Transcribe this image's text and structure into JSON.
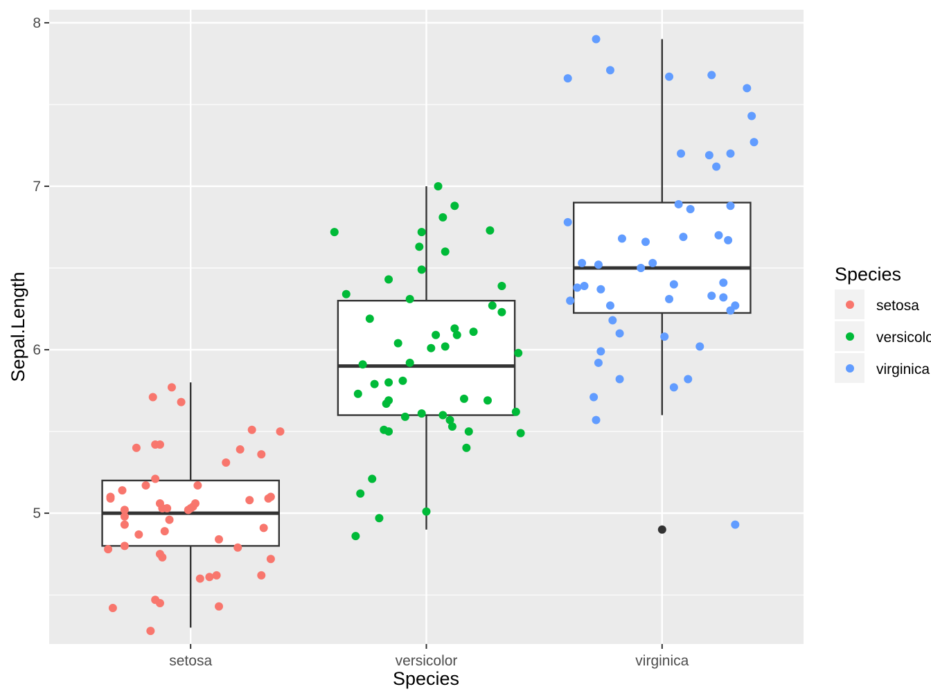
{
  "chart_data": {
    "type": "boxplot",
    "xlabel": "Species",
    "ylabel": "Sepal.Length",
    "categories": [
      "setosa",
      "versicolor",
      "virginica"
    ],
    "ylim": [
      4.2,
      8.08
    ],
    "yticks": [
      5,
      6,
      7,
      8
    ],
    "grid": true,
    "legend": {
      "title": "Species",
      "placement": "right",
      "entries": [
        "setosa",
        "versicolor",
        "virginica"
      ]
    },
    "colors": {
      "setosa": "#F8766D",
      "versicolor": "#00BA38",
      "virginica": "#619CFF",
      "panel": "#EBEBEB",
      "box_line": "#333333"
    },
    "boxes": [
      {
        "name": "setosa",
        "lower_whisker": 4.3,
        "q1": 4.8,
        "median": 5.0,
        "q3": 5.2,
        "upper_whisker": 5.8,
        "outliers": []
      },
      {
        "name": "versicolor",
        "lower_whisker": 4.9,
        "q1": 5.6,
        "median": 5.9,
        "q3": 6.3,
        "upper_whisker": 7.0,
        "outliers": []
      },
      {
        "name": "virginica",
        "lower_whisker": 5.6,
        "q1": 6.225,
        "median": 6.5,
        "q3": 6.9,
        "upper_whisker": 7.9,
        "outliers": [
          4.9
        ]
      }
    ],
    "series": [
      {
        "name": "setosa",
        "points": [
          [
            0.66,
            5.1
          ],
          [
            0.66,
            5.09
          ],
          [
            0.72,
            4.8
          ],
          [
            0.65,
            4.78
          ],
          [
            0.67,
            4.42
          ],
          [
            0.72,
            5.02
          ],
          [
            0.71,
            5.14
          ],
          [
            0.72,
            4.93
          ],
          [
            0.72,
            4.98
          ],
          [
            0.78,
            4.87
          ],
          [
            0.81,
            5.17
          ],
          [
            0.85,
            4.47
          ],
          [
            0.83,
            4.28
          ],
          [
            0.85,
            5.21
          ],
          [
            0.87,
            4.75
          ],
          [
            0.87,
            4.45
          ],
          [
            0.87,
            5.06
          ],
          [
            0.87,
            5.42
          ],
          [
            0.85,
            5.42
          ],
          [
            0.77,
            5.4
          ],
          [
            0.84,
            5.71
          ],
          [
            0.88,
            4.73
          ],
          [
            0.88,
            5.03
          ],
          [
            0.89,
            4.89
          ],
          [
            0.91,
            4.96
          ],
          [
            0.9,
            5.03
          ],
          [
            0.92,
            5.77
          ],
          [
            0.96,
            5.68
          ],
          [
            0.99,
            5.02
          ],
          [
            1.01,
            5.04
          ],
          [
            1.03,
            5.17
          ],
          [
            1.02,
            5.06
          ],
          [
            1.04,
            4.6
          ],
          [
            1.08,
            4.61
          ],
          [
            1.0,
            5.03
          ],
          [
            1.11,
            4.62
          ],
          [
            1.12,
            4.43
          ],
          [
            1.12,
            4.84
          ],
          [
            1.15,
            5.31
          ],
          [
            1.2,
            4.79
          ],
          [
            1.21,
            5.39
          ],
          [
            1.26,
            5.51
          ],
          [
            1.25,
            5.08
          ],
          [
            1.3,
            5.36
          ],
          [
            1.3,
            4.62
          ],
          [
            1.31,
            4.91
          ],
          [
            1.33,
            5.09
          ],
          [
            1.34,
            5.1
          ],
          [
            1.34,
            4.72
          ],
          [
            1.38,
            5.5
          ]
        ]
      },
      {
        "name": "versicolor",
        "points": [
          [
            1.61,
            6.72
          ],
          [
            1.66,
            6.34
          ],
          [
            1.7,
            4.86
          ],
          [
            1.72,
            5.12
          ],
          [
            1.71,
            5.73
          ],
          [
            1.73,
            5.91
          ],
          [
            1.76,
            6.19
          ],
          [
            1.78,
            5.79
          ],
          [
            1.77,
            5.21
          ],
          [
            1.8,
            4.97
          ],
          [
            1.82,
            5.51
          ],
          [
            1.83,
            5.67
          ],
          [
            1.84,
            5.69
          ],
          [
            1.84,
            5.5
          ],
          [
            1.84,
            6.43
          ],
          [
            1.84,
            5.8
          ],
          [
            1.88,
            6.04
          ],
          [
            1.9,
            5.81
          ],
          [
            1.91,
            5.59
          ],
          [
            1.93,
            5.92
          ],
          [
            1.93,
            6.31
          ],
          [
            1.97,
            6.63
          ],
          [
            1.98,
            6.72
          ],
          [
            1.98,
            6.49
          ],
          [
            1.98,
            5.61
          ],
          [
            2.0,
            5.01
          ],
          [
            2.02,
            6.01
          ],
          [
            2.04,
            6.09
          ],
          [
            2.05,
            7.0
          ],
          [
            2.07,
            6.81
          ],
          [
            2.08,
            6.6
          ],
          [
            2.08,
            6.02
          ],
          [
            2.07,
            5.6
          ],
          [
            2.1,
            5.57
          ],
          [
            2.11,
            5.53
          ],
          [
            2.12,
            6.88
          ],
          [
            2.12,
            6.13
          ],
          [
            2.13,
            6.09
          ],
          [
            2.16,
            5.7
          ],
          [
            2.17,
            5.4
          ],
          [
            2.18,
            5.5
          ],
          [
            2.2,
            6.11
          ],
          [
            2.26,
            5.69
          ],
          [
            2.27,
            6.73
          ],
          [
            2.28,
            6.27
          ],
          [
            2.32,
            6.39
          ],
          [
            2.32,
            6.23
          ],
          [
            2.38,
            5.62
          ],
          [
            2.39,
            5.98
          ],
          [
            2.4,
            5.49
          ]
        ]
      },
      {
        "name": "virginica",
        "points": [
          [
            2.6,
            7.66
          ],
          [
            2.6,
            6.78
          ],
          [
            2.61,
            6.3
          ],
          [
            2.64,
            6.38
          ],
          [
            2.66,
            6.53
          ],
          [
            2.67,
            6.39
          ],
          [
            2.71,
            5.71
          ],
          [
            2.72,
            5.57
          ],
          [
            2.72,
            7.9
          ],
          [
            2.73,
            6.52
          ],
          [
            2.73,
            5.92
          ],
          [
            2.74,
            6.37
          ],
          [
            2.74,
            5.99
          ],
          [
            2.78,
            7.71
          ],
          [
            2.78,
            6.27
          ],
          [
            2.79,
            6.18
          ],
          [
            2.82,
            5.82
          ],
          [
            2.83,
            6.68
          ],
          [
            2.82,
            6.1
          ],
          [
            2.91,
            6.5
          ],
          [
            2.93,
            6.66
          ],
          [
            2.96,
            6.53
          ],
          [
            3.01,
            6.08
          ],
          [
            3.03,
            7.67
          ],
          [
            3.03,
            6.31
          ],
          [
            3.05,
            5.77
          ],
          [
            3.05,
            6.4
          ],
          [
            3.07,
            6.89
          ],
          [
            3.08,
            7.2
          ],
          [
            3.09,
            6.69
          ],
          [
            3.11,
            5.82
          ],
          [
            3.12,
            6.86
          ],
          [
            3.16,
            6.02
          ],
          [
            3.2,
            7.19
          ],
          [
            3.21,
            6.33
          ],
          [
            3.21,
            7.68
          ],
          [
            3.23,
            7.12
          ],
          [
            3.24,
            6.7
          ],
          [
            3.26,
            6.41
          ],
          [
            3.26,
            6.32
          ],
          [
            3.28,
            6.67
          ],
          [
            3.29,
            6.24
          ],
          [
            3.29,
            6.88
          ],
          [
            3.29,
            7.2
          ],
          [
            3.31,
            4.93
          ],
          [
            3.31,
            6.27
          ],
          [
            3.36,
            7.6
          ],
          [
            3.38,
            7.43
          ],
          [
            3.39,
            7.27
          ]
        ]
      }
    ]
  }
}
